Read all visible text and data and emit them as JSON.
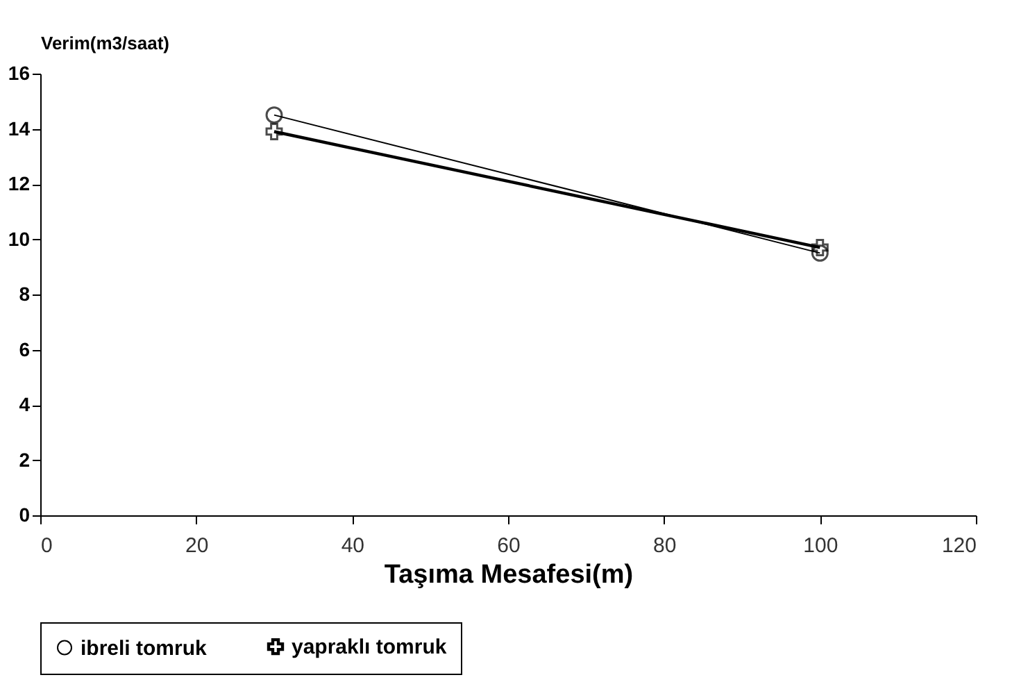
{
  "chart_data": {
    "type": "line",
    "xlabel": "Taşıma Mesafesi(m)",
    "ylabel": "Verim(m3/saat)",
    "x": [
      30,
      100
    ],
    "series": [
      {
        "name": "ibreli tomruk",
        "color": "#000000",
        "values": [
          14.5,
          9.5
        ],
        "marker": "circle"
      },
      {
        "name": "yapraklı tomruk",
        "color": "#000000",
        "values": [
          13.9,
          9.7
        ],
        "marker": "cross"
      }
    ],
    "xlim": [
      0,
      120
    ],
    "xticks": [
      0,
      20,
      40,
      60,
      80,
      100,
      120
    ],
    "ylim": [
      0,
      16
    ],
    "yticks": [
      0,
      2,
      4,
      6,
      8,
      10,
      12,
      14,
      16
    ],
    "grid": false,
    "legend": "bottom",
    "line_style": "solid"
  }
}
